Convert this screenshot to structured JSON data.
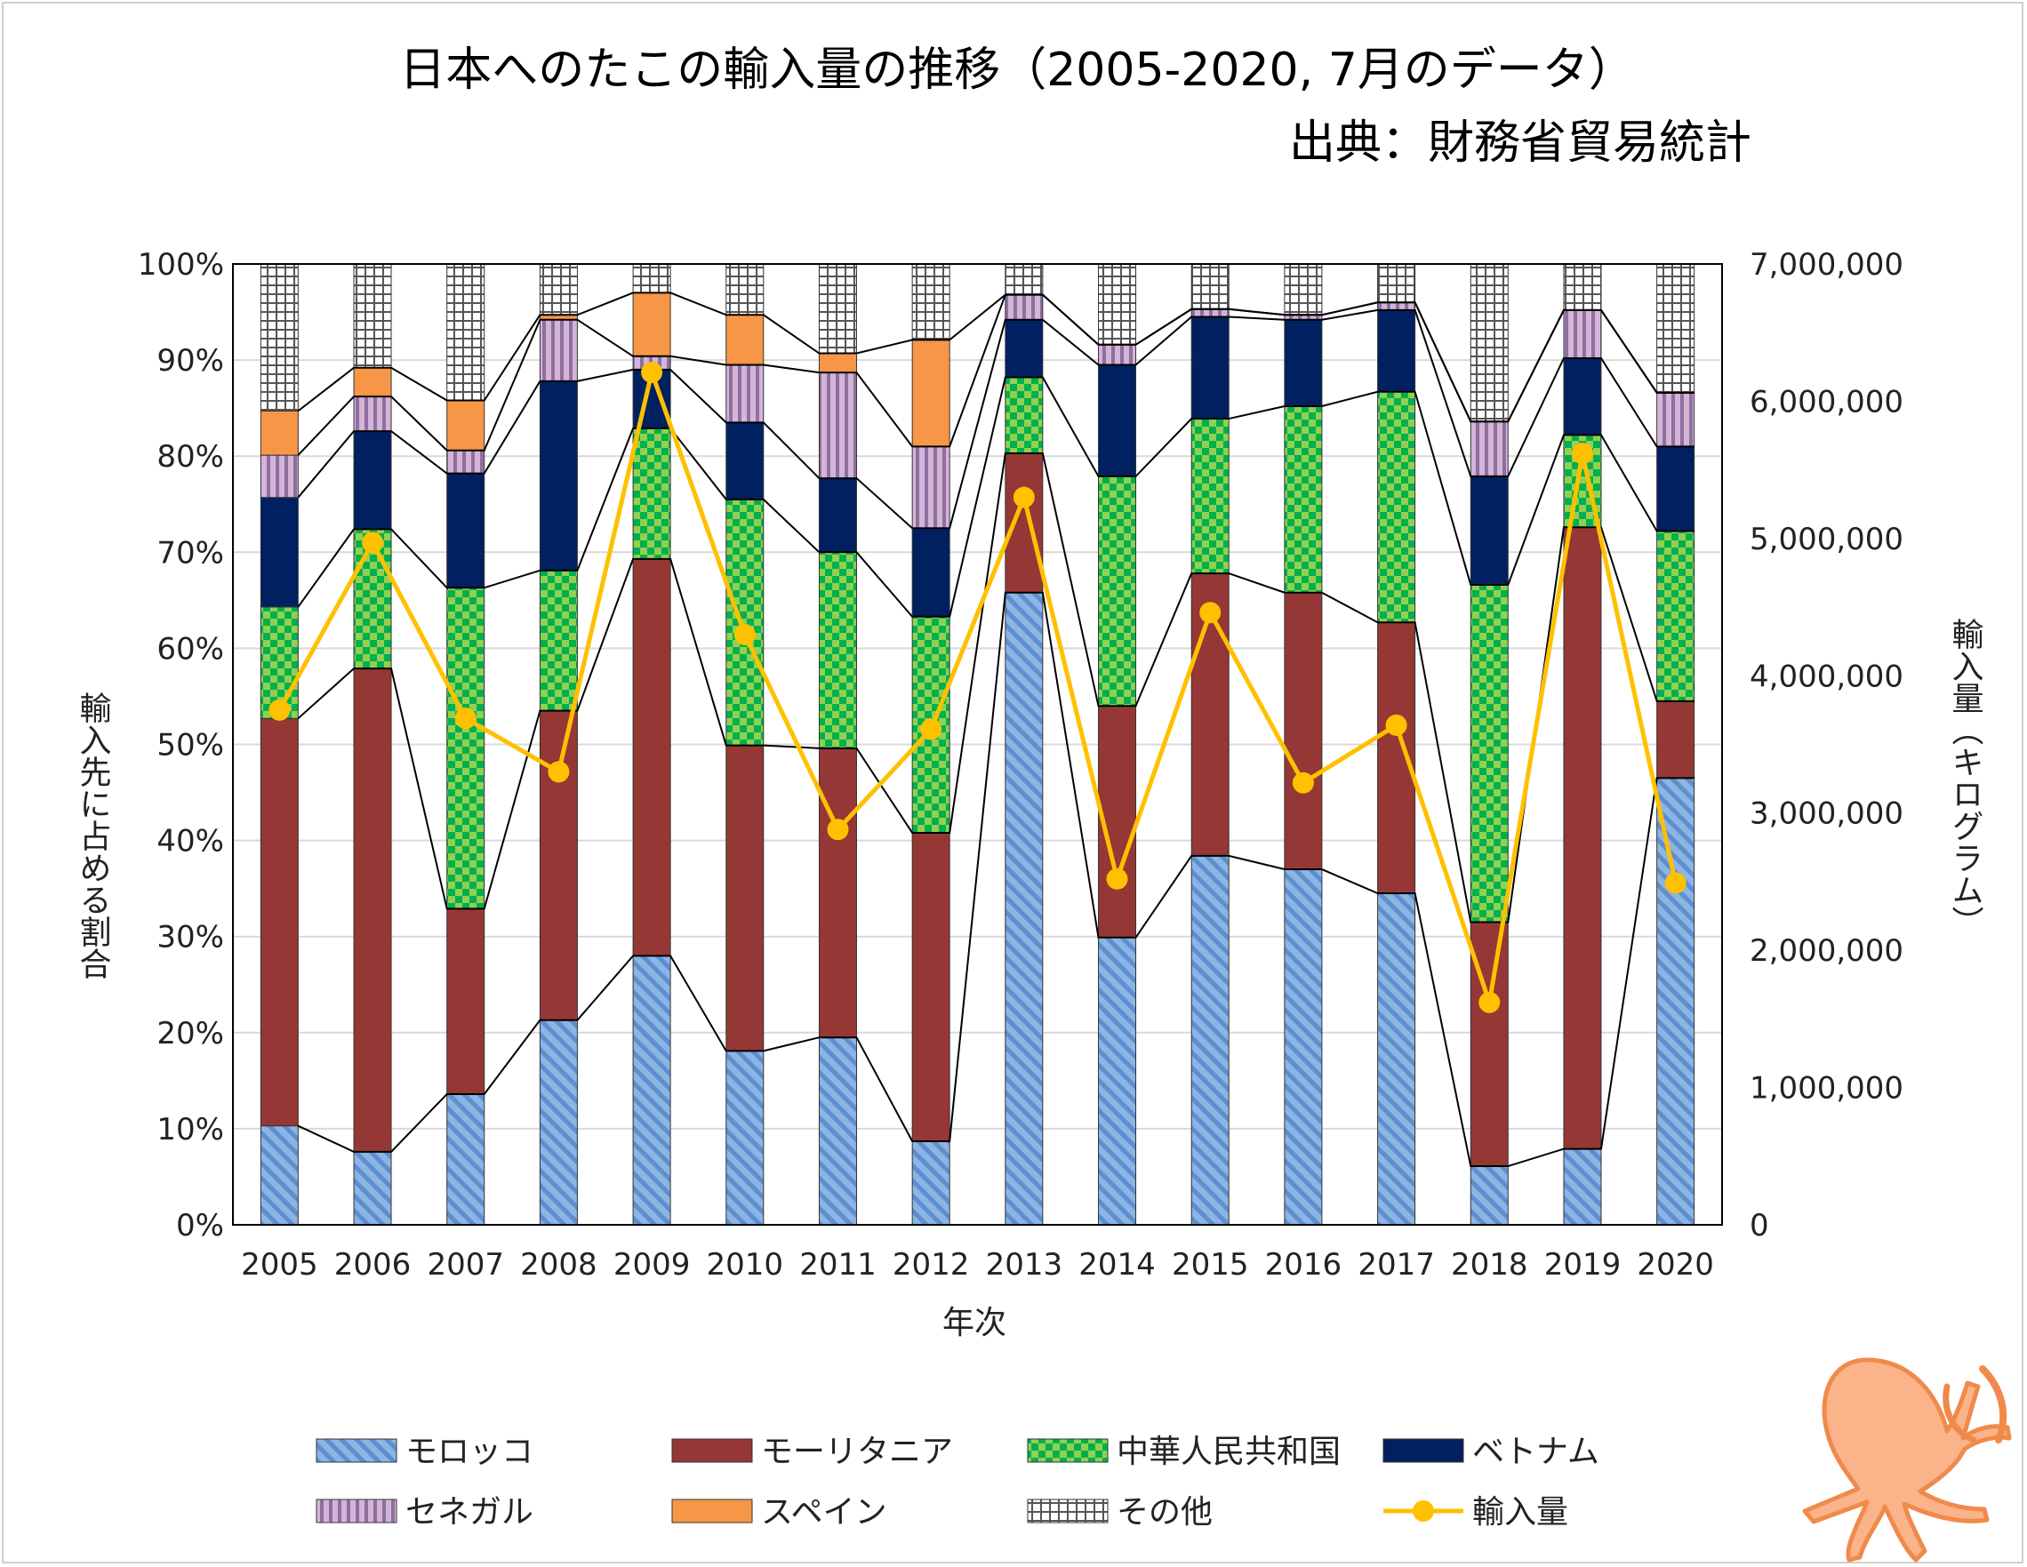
{
  "chart_data": {
    "type": "bar",
    "stacked": true,
    "title": "日本へのたこの輸入量の推移（2005-2020, 7月のデータ）",
    "subtitle": "出典：財務省貿易統計",
    "xlabel": "年次",
    "ylabel": "輸入先に占める割合",
    "y2label": "輸入量（キログラム）",
    "ylim": [
      0,
      100
    ],
    "y2lim": [
      0,
      7000000
    ],
    "yticks": [
      "0%",
      "10%",
      "20%",
      "30%",
      "40%",
      "50%",
      "60%",
      "70%",
      "80%",
      "90%",
      "100%"
    ],
    "y2ticks": [
      "0",
      "1,000,000",
      "2,000,000",
      "3,000,000",
      "4,000,000",
      "5,000,000",
      "6,000,000",
      "7,000,000"
    ],
    "categories": [
      "2005",
      "2006",
      "2007",
      "2008",
      "2009",
      "2010",
      "2011",
      "2012",
      "2013",
      "2014",
      "2015",
      "2016",
      "2017",
      "2018",
      "2019",
      "2020"
    ],
    "series": [
      {
        "name": "モロッコ",
        "color": "#8db4e2",
        "pattern": "diag",
        "values": [
          10.3,
          7.6,
          13.6,
          21.3,
          28.0,
          18.1,
          19.5,
          8.7,
          65.8,
          29.9,
          38.4,
          37.0,
          34.5,
          6.1,
          7.9,
          46.5
        ]
      },
      {
        "name": "モーリタニア",
        "color": "#953735",
        "pattern": "solid",
        "values": [
          42.4,
          50.3,
          19.3,
          32.2,
          41.3,
          31.8,
          30.1,
          32.1,
          14.5,
          24.1,
          29.4,
          28.8,
          28.2,
          25.4,
          64.7,
          8.0
        ]
      },
      {
        "name": "中華人民共和国",
        "color": "#92d050",
        "pattern": "check",
        "values": [
          11.6,
          14.5,
          33.4,
          14.6,
          13.6,
          25.6,
          20.4,
          22.5,
          7.9,
          23.9,
          16.1,
          19.4,
          24.0,
          35.1,
          9.6,
          17.7
        ]
      },
      {
        "name": "ベトナム",
        "color": "#002060",
        "pattern": "solid",
        "values": [
          11.4,
          10.2,
          11.9,
          19.7,
          6.1,
          8.0,
          7.7,
          9.2,
          6.0,
          11.6,
          10.6,
          9.0,
          8.5,
          11.3,
          8.0,
          8.8
        ]
      },
      {
        "name": "セネガル",
        "color": "#b3a2c7",
        "pattern": "vstripe",
        "values": [
          4.4,
          3.6,
          2.4,
          6.4,
          1.4,
          6.0,
          11.0,
          8.5,
          2.6,
          2.1,
          0.8,
          0.5,
          0.8,
          5.7,
          5.0,
          5.6
        ]
      },
      {
        "name": "スペイン",
        "color": "#f79646",
        "pattern": "solid",
        "values": [
          4.6,
          3.0,
          5.2,
          0.5,
          6.6,
          5.2,
          2.0,
          11.1,
          0.0,
          0.0,
          0.0,
          0.0,
          0.0,
          0.0,
          0.0,
          0.0
        ]
      },
      {
        "name": "その他",
        "color": "#d9d9d9",
        "pattern": "grid",
        "values": [
          15.3,
          10.8,
          14.2,
          5.3,
          3.0,
          5.3,
          9.3,
          7.9,
          3.2,
          8.4,
          4.7,
          5.3,
          4.0,
          16.4,
          4.8,
          13.4
        ]
      }
    ],
    "line": {
      "name": "輸入量",
      "color": "#ffc000",
      "axis": "right",
      "values": [
        3750000,
        4970000,
        3690000,
        3300000,
        6210000,
        4300000,
        2880000,
        3610000,
        5300000,
        2520000,
        4460000,
        3220000,
        3640000,
        1620000,
        5620000,
        2490000
      ]
    },
    "legend_position": "bottom"
  }
}
